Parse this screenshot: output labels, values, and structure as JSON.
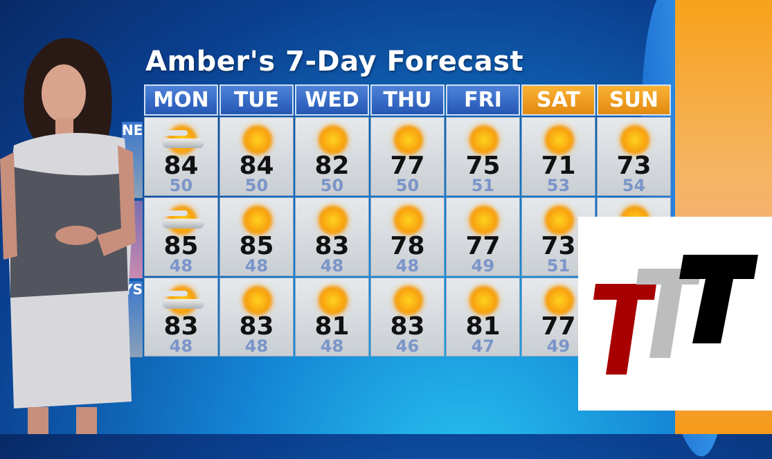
{
  "title": "Amber's 7-Day Forecast",
  "side_labels": [
    "NES",
    "",
    "YS"
  ],
  "days": [
    {
      "label": "MON",
      "weekend": false
    },
    {
      "label": "TUE",
      "weekend": false
    },
    {
      "label": "WED",
      "weekend": false
    },
    {
      "label": "THU",
      "weekend": false
    },
    {
      "label": "FRI",
      "weekend": false
    },
    {
      "label": "SAT",
      "weekend": true
    },
    {
      "label": "SUN",
      "weekend": true
    }
  ],
  "rows": [
    {
      "cells": [
        {
          "icon": "partly-cloudy",
          "hi": "84",
          "lo": "50"
        },
        {
          "icon": "sunny",
          "hi": "84",
          "lo": "50"
        },
        {
          "icon": "sunny",
          "hi": "82",
          "lo": "50"
        },
        {
          "icon": "sunny",
          "hi": "77",
          "lo": "50"
        },
        {
          "icon": "sunny",
          "hi": "75",
          "lo": "51"
        },
        {
          "icon": "sunny",
          "hi": "71",
          "lo": "53"
        },
        {
          "icon": "sunny",
          "hi": "73",
          "lo": "54"
        }
      ]
    },
    {
      "cells": [
        {
          "icon": "partly-cloudy",
          "hi": "85",
          "lo": "48"
        },
        {
          "icon": "sunny",
          "hi": "85",
          "lo": "48"
        },
        {
          "icon": "sunny",
          "hi": "83",
          "lo": "48"
        },
        {
          "icon": "sunny",
          "hi": "78",
          "lo": "48"
        },
        {
          "icon": "sunny",
          "hi": "77",
          "lo": "49"
        },
        {
          "icon": "sunny",
          "hi": "73",
          "lo": "51"
        },
        {
          "icon": "sunny",
          "hi": "",
          "lo": ""
        }
      ]
    },
    {
      "cells": [
        {
          "icon": "partly-cloudy",
          "hi": "83",
          "lo": "48"
        },
        {
          "icon": "sunny",
          "hi": "83",
          "lo": "48"
        },
        {
          "icon": "sunny",
          "hi": "81",
          "lo": "48"
        },
        {
          "icon": "sunny",
          "hi": "83",
          "lo": "46"
        },
        {
          "icon": "sunny",
          "hi": "81",
          "lo": "47"
        },
        {
          "icon": "sunny",
          "hi": "77",
          "lo": "49"
        },
        {
          "icon": "sunny",
          "hi": "",
          "lo": ""
        }
      ]
    }
  ],
  "colors": {
    "header": "#2f63c0",
    "weekend_header": "#f0a020",
    "low_temp": "#7b95c9",
    "logo_red": "#a80000",
    "logo_gray": "#bdbdbd",
    "logo_black": "#000000"
  },
  "logo": {
    "text": "TTT"
  }
}
